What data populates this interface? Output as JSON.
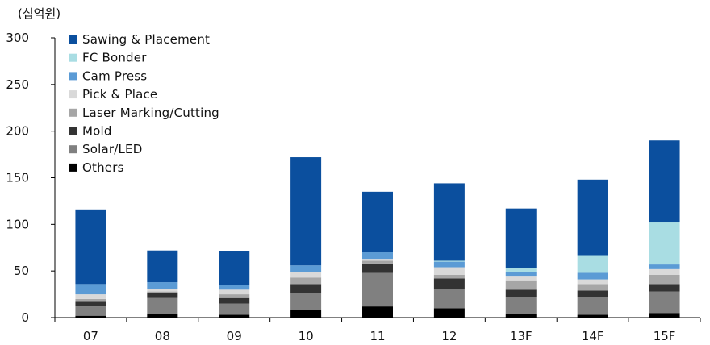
{
  "chart_data": {
    "type": "bar",
    "stacked": true,
    "unit_label": "(십억원)",
    "categories": [
      "07",
      "08",
      "09",
      "10",
      "11",
      "12",
      "13F",
      "14F",
      "15F"
    ],
    "ylim": [
      0,
      300
    ],
    "yticks": [
      0,
      50,
      100,
      150,
      200,
      250,
      300
    ],
    "grid": false,
    "legend_position": "top-left",
    "series": [
      {
        "name": "Others",
        "color": "#000000",
        "values": [
          2,
          4,
          3,
          8,
          12,
          10,
          4,
          3,
          5
        ]
      },
      {
        "name": "Solar/LED",
        "color": "#808080",
        "values": [
          10,
          17,
          12,
          18,
          36,
          21,
          18,
          19,
          23
        ]
      },
      {
        "name": "Mold",
        "color": "#333333",
        "values": [
          5,
          6,
          6,
          10,
          10,
          11,
          8,
          7,
          8
        ]
      },
      {
        "name": "Laser Marking/Cutting",
        "color": "#a6a6a6",
        "values": [
          3,
          1,
          4,
          7,
          3,
          4,
          10,
          7,
          10
        ]
      },
      {
        "name": "Pick & Place",
        "color": "#d9d9d9",
        "values": [
          5,
          3,
          5,
          6,
          2,
          8,
          4,
          5,
          6
        ]
      },
      {
        "name": "Cam Press",
        "color": "#5b9bd5",
        "values": [
          11,
          7,
          5,
          7,
          7,
          6,
          5,
          7,
          5
        ]
      },
      {
        "name": "FC Bonder",
        "color": "#a9dde3",
        "values": [
          0,
          0,
          0,
          0,
          0,
          1,
          4,
          19,
          45
        ]
      },
      {
        "name": "Sawing & Placement",
        "color": "#0b4f9e",
        "values": [
          80,
          34,
          36,
          116,
          65,
          83,
          64,
          81,
          88
        ]
      }
    ]
  }
}
